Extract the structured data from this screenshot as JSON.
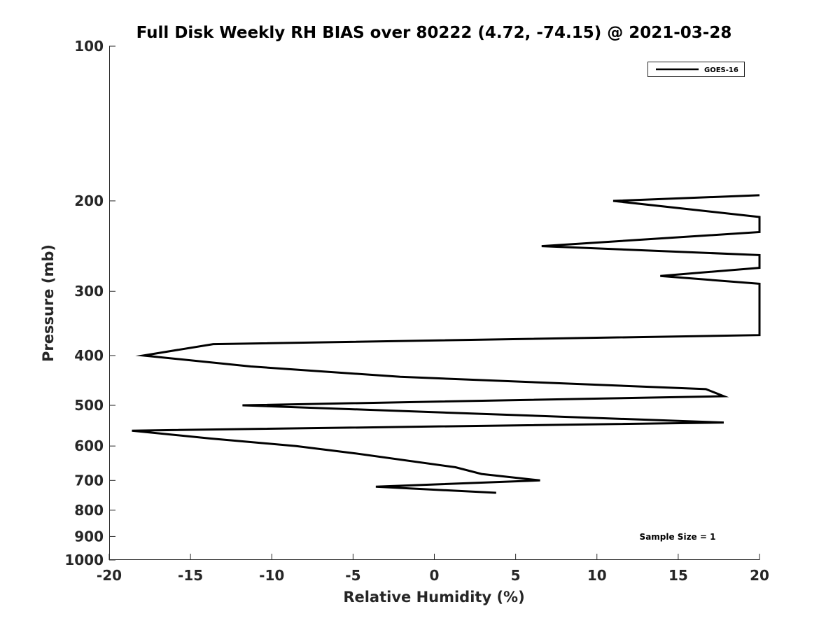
{
  "chart_data": {
    "type": "line",
    "title": "Full Disk Weekly RH BIAS over 80222 (4.72, -74.15) @ 2021-03-28",
    "xlabel": "Relative Humidity (%)",
    "ylabel": "Pressure (mb)",
    "xlim": [
      -20,
      20
    ],
    "ylim": [
      1000,
      100
    ],
    "y_scale": "log",
    "y_reversed": true,
    "grid": false,
    "x_ticks": [
      -20,
      -15,
      -10,
      -5,
      0,
      5,
      10,
      15,
      20
    ],
    "x_tick_labels": [
      "-20",
      "-15",
      "-10",
      "-5",
      "0",
      "5",
      "10",
      "15",
      "20"
    ],
    "y_ticks": [
      100,
      200,
      300,
      400,
      500,
      600,
      700,
      800,
      900,
      1000
    ],
    "y_tick_labels": [
      "100",
      "200",
      "300",
      "400",
      "500",
      "600",
      "700",
      "800",
      "900",
      "1000"
    ],
    "legend": {
      "placement": "top-right",
      "entries": [
        "GOES-16"
      ]
    },
    "annotation": "Sample Size = 1",
    "series": [
      {
        "name": "GOES-16",
        "color": "#000000",
        "x": [
          3.8,
          -3.6,
          6.5,
          2.9,
          1.3,
          -4.9,
          -8.5,
          -13.8,
          -18.6,
          17.8,
          -11.8,
          17.8,
          16.7,
          -2.1,
          -11.3,
          -17.9,
          -13.6,
          20.0,
          20.0,
          13.9,
          20.0,
          20.0,
          6.6,
          20.0,
          20.0,
          11.0,
          20.0
        ],
        "y": [
          740,
          720,
          700,
          680,
          660,
          620,
          600,
          580,
          560,
          540,
          500,
          480,
          465,
          440,
          420,
          400,
          380,
          365,
          290,
          280,
          270,
          255,
          245,
          230,
          215,
          200,
          195
        ]
      }
    ]
  }
}
